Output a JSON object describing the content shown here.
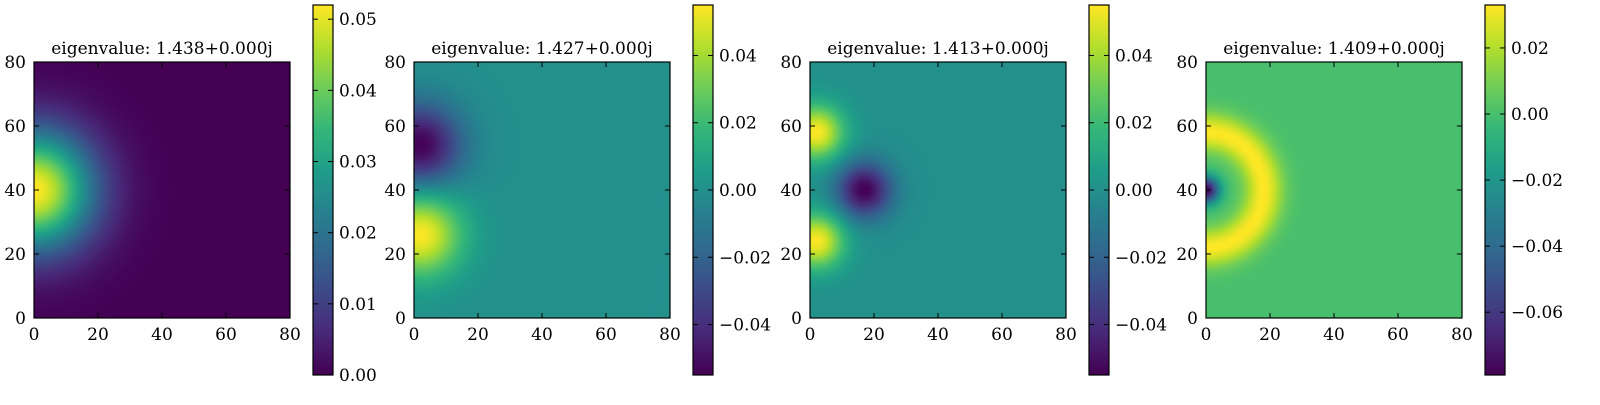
{
  "chart_data": [
    {
      "type": "heatmap",
      "title": "eigenvalue: 1.438+0.000j",
      "xlabel": "",
      "ylabel": "",
      "xlim": [
        0,
        80
      ],
      "ylim": [
        0,
        80
      ],
      "xticks": [
        "0",
        "20",
        "40",
        "60",
        "80"
      ],
      "yticks": [
        "0",
        "20",
        "40",
        "60",
        "80"
      ],
      "colorbar": {
        "range": [
          0.0,
          0.052
        ],
        "ticks": [
          0.0,
          0.01,
          0.02,
          0.03,
          0.04,
          0.05
        ],
        "tick_labels": [
          "0.00",
          "0.01",
          "0.02",
          "0.03",
          "0.04",
          "0.05"
        ]
      },
      "colormap": "viridis",
      "mode": {
        "peak_value": 0.052,
        "center": [
          0,
          40
        ],
        "lobes": [
          [
            0,
            40,
            1
          ]
        ],
        "sigma_radial": 13,
        "ring_radius": 0
      }
    },
    {
      "type": "heatmap",
      "title": "eigenvalue: 1.427+0.000j",
      "xlabel": "",
      "ylabel": "",
      "xlim": [
        0,
        80
      ],
      "ylim": [
        0,
        80
      ],
      "xticks": [
        "0",
        "20",
        "40",
        "60",
        "80"
      ],
      "yticks": [
        "0",
        "20",
        "40",
        "60",
        "80"
      ],
      "colorbar": {
        "range": [
          -0.055,
          0.055
        ],
        "ticks": [
          -0.04,
          -0.02,
          0.0,
          0.02,
          0.04
        ],
        "tick_labels": [
          "−0.04",
          "−0.02",
          "0.00",
          "0.02",
          "0.04"
        ]
      },
      "colormap": "viridis",
      "mode": {
        "peak_value": 0.055,
        "center": [
          0,
          40
        ],
        "lobes": [
          [
            2,
            26,
            1
          ],
          [
            2,
            54,
            -1
          ]
        ],
        "sigma_radial": 9,
        "ring_radius": 0
      }
    },
    {
      "type": "heatmap",
      "title": "eigenvalue: 1.413+0.000j",
      "xlabel": "",
      "ylabel": "",
      "xlim": [
        0,
        80
      ],
      "ylim": [
        0,
        80
      ],
      "xticks": [
        "0",
        "20",
        "40",
        "60",
        "80"
      ],
      "yticks": [
        "0",
        "20",
        "40",
        "60",
        "80"
      ],
      "colorbar": {
        "range": [
          -0.055,
          0.055
        ],
        "ticks": [
          -0.04,
          -0.02,
          0.0,
          0.02,
          0.04
        ],
        "tick_labels": [
          "−0.04",
          "−0.02",
          "0.00",
          "0.02",
          "0.04"
        ]
      },
      "colormap": "viridis",
      "mode": {
        "peak_value": 0.055,
        "center": [
          0,
          40
        ],
        "lobes": [
          [
            2,
            24,
            1
          ],
          [
            2,
            58,
            1
          ],
          [
            17,
            40,
            -1
          ]
        ],
        "sigma_radial": 6,
        "ring_radius": 0
      }
    },
    {
      "type": "heatmap",
      "title": "eigenvalue: 1.409+0.000j",
      "xlabel": "",
      "ylabel": "",
      "xlim": [
        0,
        80
      ],
      "ylim": [
        0,
        80
      ],
      "xticks": [
        "0",
        "20",
        "40",
        "60",
        "80"
      ],
      "yticks": [
        "0",
        "20",
        "40",
        "60",
        "80"
      ],
      "colorbar": {
        "range": [
          -0.079,
          0.033
        ],
        "ticks": [
          -0.06,
          -0.04,
          -0.02,
          0.0,
          0.02
        ],
        "tick_labels": [
          "−0.06",
          "−0.04",
          "−0.02",
          "0.00",
          "0.02"
        ]
      },
      "colormap": "viridis",
      "mode": {
        "peak_value": 0.033,
        "center": [
          0,
          40
        ],
        "lobes": [
          [
            0,
            40,
            -1
          ]
        ],
        "sigma_radial": 4,
        "ring_radius": 18
      }
    }
  ]
}
